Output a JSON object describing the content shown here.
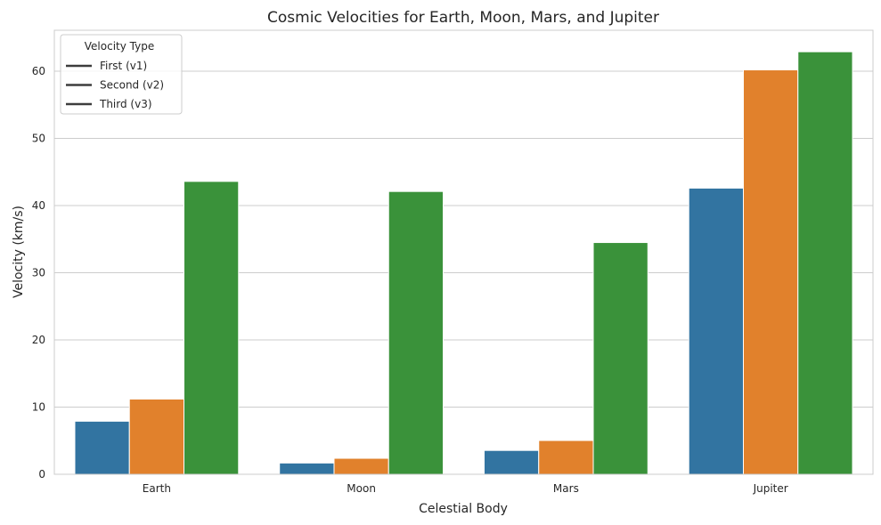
{
  "chart_data": {
    "type": "bar",
    "title": "Cosmic Velocities for Earth, Moon, Mars, and Jupiter",
    "xlabel": "Celestial Body",
    "ylabel": "Velocity (km/s)",
    "categories": [
      "Earth",
      "Moon",
      "Mars",
      "Jupiter"
    ],
    "series": [
      {
        "name": "First (v1)",
        "color": "#3274a1",
        "values": [
          7.9,
          1.68,
          3.55,
          42.6
        ]
      },
      {
        "name": "Second (v2)",
        "color": "#e1812c",
        "values": [
          11.2,
          2.38,
          5.03,
          60.2
        ]
      },
      {
        "name": "Third (v3)",
        "color": "#3a923a",
        "values": [
          43.6,
          42.1,
          34.5,
          62.9
        ]
      }
    ],
    "ylim": [
      0,
      66.1
    ],
    "yticks": [
      0,
      10,
      20,
      30,
      40,
      50,
      60
    ],
    "legend_title": "Velocity Type",
    "legend_position": "top-left",
    "grid": "y"
  }
}
